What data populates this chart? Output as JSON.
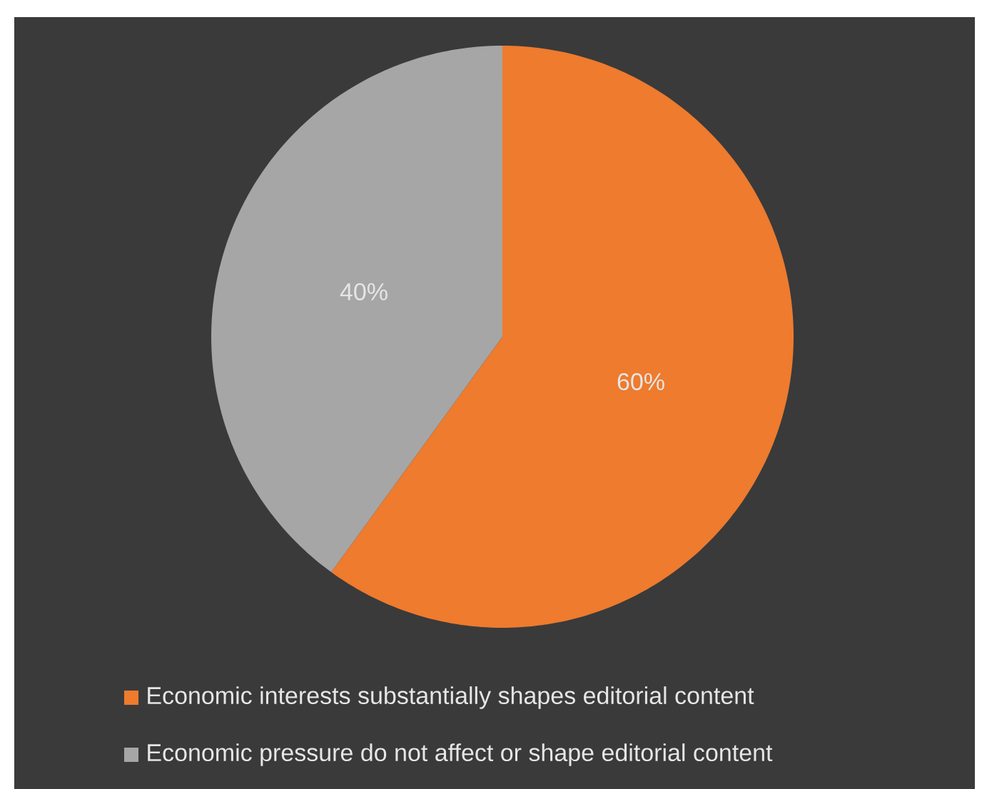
{
  "chart_data": {
    "type": "pie",
    "categories": [
      "Economic interests substantially shapes editorial content",
      "Economic pressure do not affect or shape editorial content"
    ],
    "values": [
      60,
      40
    ],
    "colors": [
      "#ee7b2e",
      "#a6a6a6"
    ],
    "value_labels": [
      "60%",
      "40%"
    ],
    "legend": "bottom"
  }
}
